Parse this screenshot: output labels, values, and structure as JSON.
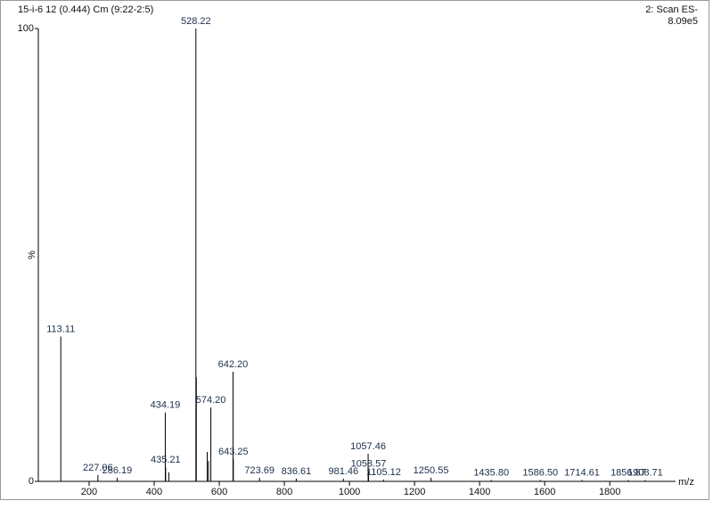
{
  "chart_data": {
    "type": "stem",
    "subtitle": "15-i-6 12 (0.444) Cm (9:22-2:5)",
    "scan": "2: Scan ES-",
    "intensity": "8.09e5",
    "ylabel": "%",
    "xlabel": "m/z",
    "x": [
      113.11,
      227.06,
      286.19,
      434.19,
      435.21,
      528.22,
      574.2,
      642.2,
      643.25,
      723.69,
      836.61,
      981.46,
      1057.46,
      1058.57,
      1105.12,
      1250.55,
      1435.8,
      1586.5,
      1714.61,
      1856.87,
      1908.71
    ],
    "value_labels": [
      "113.11",
      "227.06",
      "286.19",
      "434.19",
      "435.21",
      "528.22",
      "574.20",
      "642.20",
      "643.25",
      "723.69",
      "836.61",
      "981.46",
      "1057.46",
      "1058.57",
      "1105.12",
      "1250.55",
      "1435.80",
      "1586.50",
      "1714.61",
      "1856.87",
      "1908.71"
    ],
    "values": [
      32,
      1.4,
      0.8,
      15.2,
      3.1,
      100,
      16.3,
      24.2,
      4.9,
      0.8,
      0.6,
      0.6,
      6.1,
      2.2,
      0.4,
      0.8,
      0.3,
      0.3,
      0.3,
      0.3,
      0.3
    ],
    "minor_x": [
      445,
      529.5,
      563,
      567
    ],
    "minor_values": [
      2,
      23,
      6.5,
      4.5
    ],
    "color": "#000000",
    "label_color": "#1c2e4a",
    "xlim": [
      44,
      2035
    ],
    "ylim": [
      0,
      100
    ],
    "xticks": [
      200,
      400,
      600,
      800,
      1000,
      1200,
      1400,
      1600,
      1800
    ],
    "yticks": [
      0,
      100
    ]
  }
}
